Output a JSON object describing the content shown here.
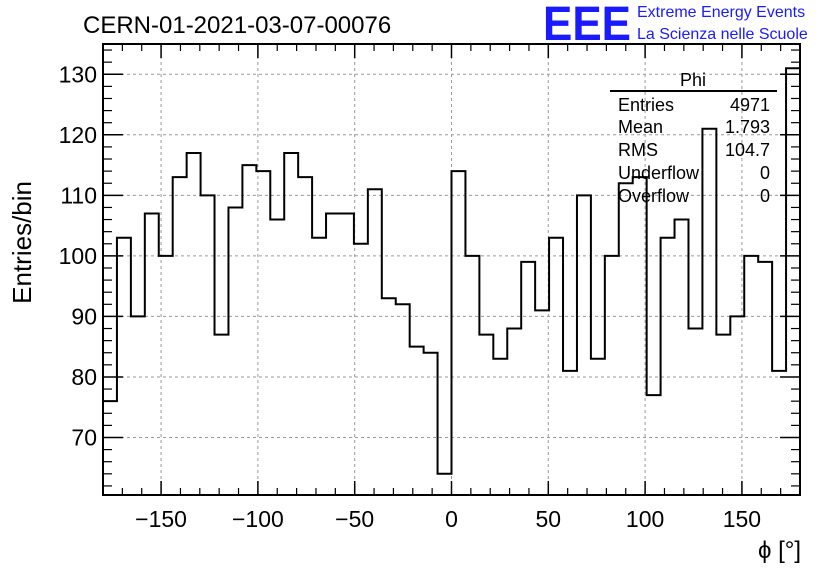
{
  "run_title": "CERN-01-2021-03-07-00076",
  "logo": {
    "mark": "EEE",
    "line1": "Extreme Energy Events",
    "line2": "La Scienza nelle Scuole",
    "color": "#1a1aff"
  },
  "stats": {
    "name": "Phi",
    "rows": [
      {
        "label": "Entries",
        "value": "4971"
      },
      {
        "label": "Mean",
        "value": "1.793"
      },
      {
        "label": "RMS",
        "value": "104.7"
      },
      {
        "label": "Underflow",
        "value": "0"
      },
      {
        "label": "Overflow",
        "value": "0"
      }
    ]
  },
  "chart_data": {
    "type": "bar",
    "style": "step-histogram",
    "xlabel": "ϕ [°]",
    "ylabel": "Entries/bin",
    "xlim": [
      -180,
      180
    ],
    "ylim": [
      60.5,
      135
    ],
    "grid": true,
    "bin_width": 7.2,
    "xticks": [
      -150,
      -100,
      -50,
      0,
      50,
      100,
      150
    ],
    "xtick_labels": [
      "−150",
      "−100",
      "−50",
      "0",
      "50",
      "100",
      "150"
    ],
    "yticks": [
      70,
      80,
      90,
      100,
      110,
      120,
      130
    ],
    "values": [
      76,
      103,
      90,
      107,
      100,
      113,
      117,
      110,
      87,
      108,
      115,
      114,
      106,
      117,
      113,
      103,
      107,
      107,
      102,
      111,
      93,
      92,
      85,
      84,
      64,
      114,
      100,
      87,
      83,
      88,
      99,
      91,
      103,
      81,
      110,
      83,
      100,
      112,
      113,
      77,
      103,
      106,
      88,
      121,
      87,
      90,
      100,
      99,
      81,
      131
    ],
    "line_color": "#000000",
    "grid_color": "#9a9a9a"
  }
}
